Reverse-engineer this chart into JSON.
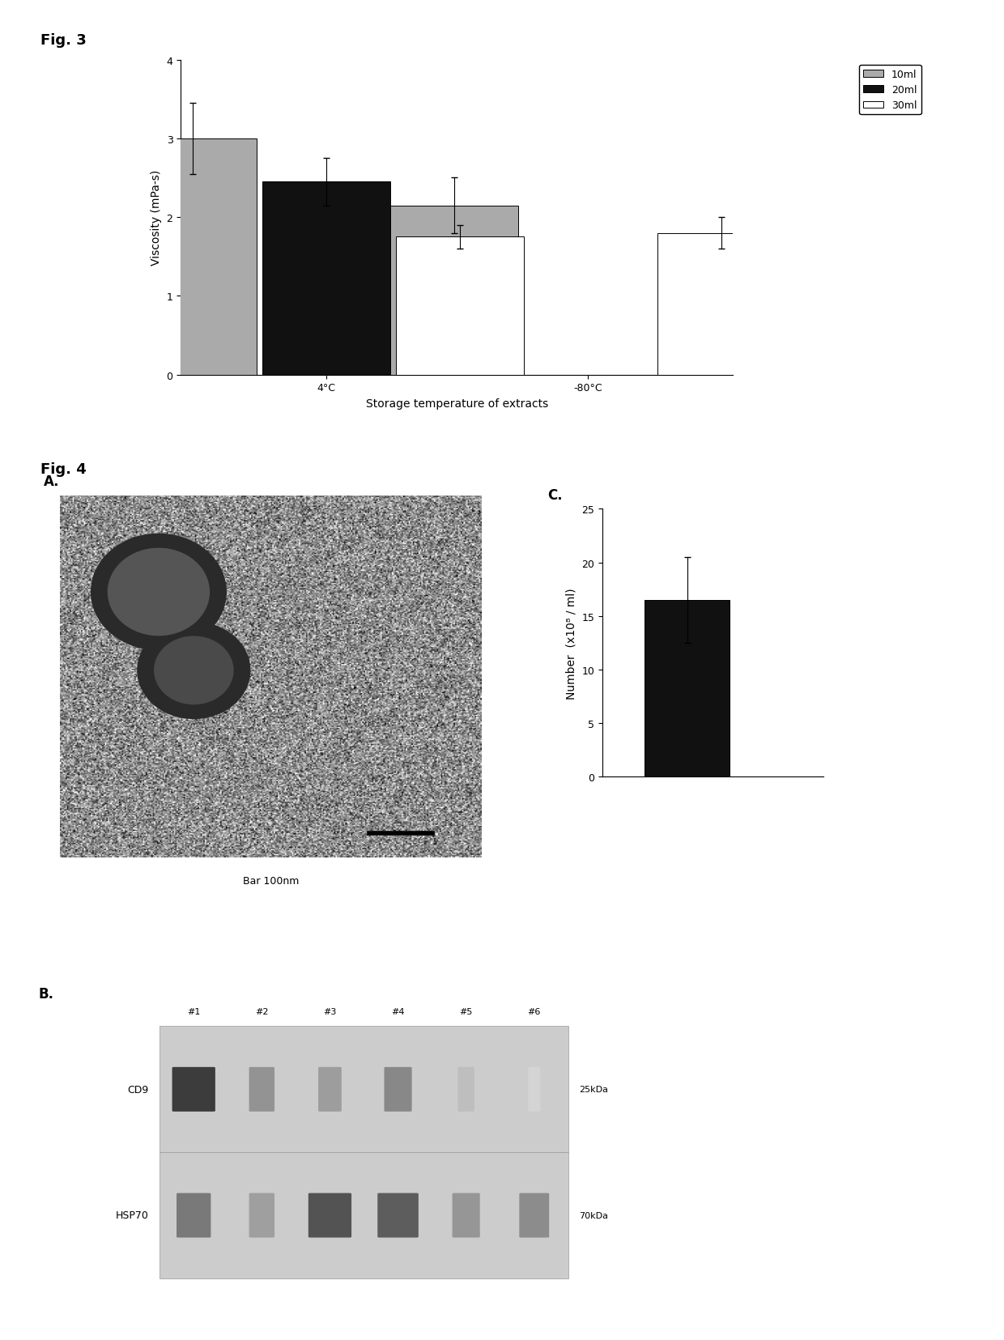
{
  "fig3_title": "Fig. 3",
  "fig4_title": "Fig. 4",
  "fig3_groups": [
    "4°C",
    "-80°C"
  ],
  "fig3_series": [
    "10ml",
    "20ml",
    "30ml"
  ],
  "fig3_values": [
    [
      3.0,
      2.45,
      1.75
    ],
    [
      2.15,
      0.0,
      1.8
    ]
  ],
  "fig3_errors": [
    [
      0.45,
      0.3,
      0.15
    ],
    [
      0.35,
      0.0,
      0.2
    ]
  ],
  "fig3_colors": [
    "#aaaaaa",
    "#111111",
    "#ffffff"
  ],
  "fig3_ylabel": "Viscosity (mPa-s)",
  "fig3_xlabel": "Storage temperature of extracts",
  "fig3_ylim": [
    0,
    4
  ],
  "fig3_yticks": [
    0,
    1,
    2,
    3,
    4
  ],
  "fig4_c_value": 16.5,
  "fig4_c_error": 4.0,
  "fig4_c_ylabel": "Number  (x10⁸ / ml)",
  "fig4_c_ylim": [
    0,
    25
  ],
  "fig4_c_yticks": [
    0,
    5,
    10,
    15,
    20,
    25
  ],
  "fig4_c_color": "#111111",
  "fig4_b_samples": [
    "#1",
    "#2",
    "#3",
    "#4",
    "#5",
    "#6"
  ],
  "fig4_b_cd9_label": "CD9",
  "fig4_b_hsp70_label": "HSP70",
  "fig4_b_cd9_kda": "25kDa",
  "fig4_b_hsp70_kda": "70kDa",
  "cd9_intensities": [
    0.9,
    0.5,
    0.45,
    0.55,
    0.3,
    0.2
  ],
  "hsp70_intensities": [
    0.7,
    0.5,
    0.9,
    0.85,
    0.55,
    0.6
  ],
  "bar_width": 0.22,
  "background_color": "#ffffff",
  "text_color": "#000000",
  "font_size_label": 10,
  "font_size_tick": 9,
  "font_size_title": 13
}
